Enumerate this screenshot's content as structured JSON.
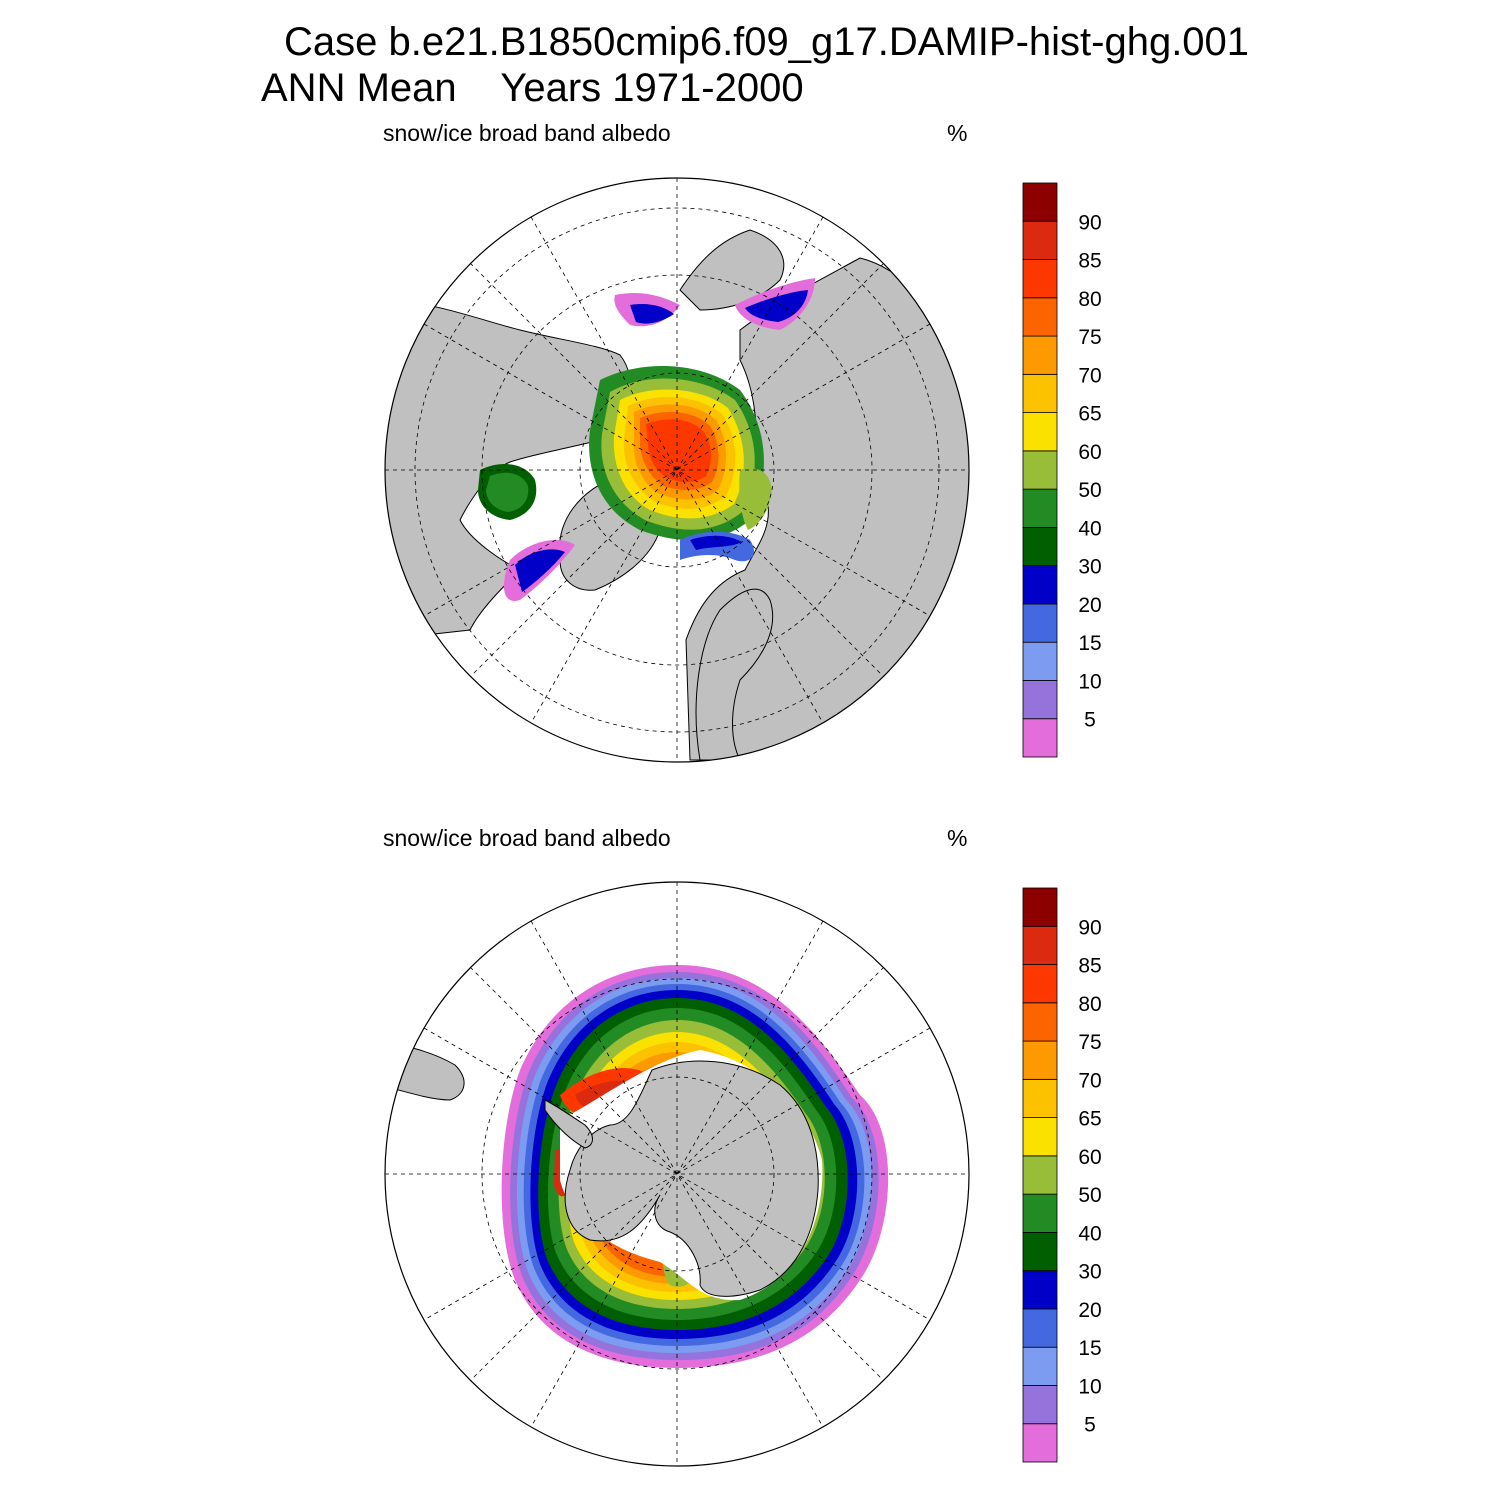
{
  "header": {
    "title_line1": "Case b.e21.B1850cmip6.f09_g17.DAMIP-hist-ghg.001",
    "title_line2": "ANN Mean    Years 1971-2000"
  },
  "colors": {
    "land": "#c0c0c0",
    "missing": "#ffffff",
    "scale": [
      "#e36ddb",
      "#9572dc",
      "#7b9cf0",
      "#4468e0",
      "#0000c8",
      "#005f00",
      "#238b23",
      "#98bd38",
      "#fae100",
      "#fcc200",
      "#fc9a00",
      "#fc6400",
      "#fc3800",
      "#dc2a10",
      "#8c0000"
    ]
  },
  "panels": [
    {
      "id": "nh",
      "hemisphere": "Northern",
      "title": "snow/ice broad band albedo",
      "unit": "%",
      "colorbar": {
        "labels": [
          "90",
          "85",
          "80",
          "75",
          "70",
          "65",
          "60",
          "50",
          "40",
          "30",
          "20",
          "15",
          "10",
          "5"
        ]
      }
    },
    {
      "id": "sh",
      "hemisphere": "Southern",
      "title": "snow/ice broad band albedo",
      "unit": "%",
      "colorbar": {
        "labels": [
          "90",
          "85",
          "80",
          "75",
          "70",
          "65",
          "60",
          "50",
          "40",
          "30",
          "20",
          "15",
          "10",
          "5"
        ]
      }
    }
  ],
  "chart_data": {
    "type": "heatmap",
    "projection": "polar stereographic",
    "variable": "snow/ice broad band albedo",
    "unit": "%",
    "contour_levels": [
      5,
      10,
      15,
      20,
      30,
      40,
      50,
      60,
      65,
      70,
      75,
      80,
      85,
      90
    ],
    "maps": [
      {
        "hemisphere": "Northern",
        "max_region": "central Arctic Ocean",
        "approx_max_band": "80-85"
      },
      {
        "hemisphere": "Southern",
        "max_region": "Weddell Sea",
        "approx_max_band": "85-90"
      }
    ],
    "grid": true
  }
}
